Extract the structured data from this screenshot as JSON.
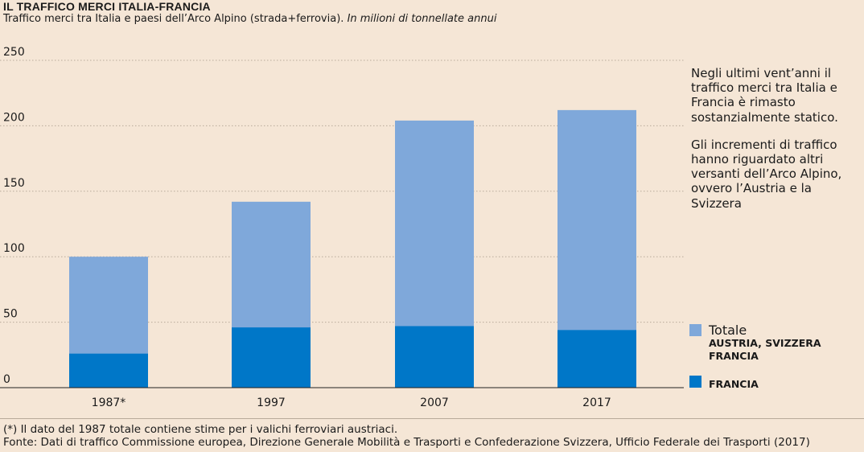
{
  "header": {
    "title": "IL TRAFFICO MERCI ITALIA-FRANCIA",
    "subtitle": "Traffico merci tra Italia e paesi dell’Arco Alpino (strada+ferrovia).",
    "subtitle_unit": "In milioni di tonnellate annui"
  },
  "annotation": {
    "paragraph1": "Negli ultimi vent’anni il traffico merci tra Italia e Francia è rimasto sostanzialmente statico.",
    "paragraph2": "Gli incrementi di traffico hanno riguardato altri versanti dell’Arco Alpino, ovvero l’Austria e la Svizzera"
  },
  "legend": {
    "totale_label": "Totale",
    "totale_sub": "AUSTRIA, SVIZZERA",
    "totale_sub2": "FRANCIA",
    "francia_label": "FRANCIA"
  },
  "footnotes": {
    "note": "(*) Il dato del 1987 totale contiene stime per i valichi ferroviari austriaci.",
    "source": "Fonte: Dati di traffico Commissione europea, Direzione Generale Mobilità e Trasporti e Confederazione Svizzera, Ufficio Federale dei Trasporti (2017)"
  },
  "colors": {
    "background": "#f5e6d6",
    "totale": "#7fa8da",
    "francia": "#0077c8",
    "grid": "#b8aa9a",
    "axis": "#222222"
  },
  "chart_data": {
    "type": "bar",
    "stacked": true,
    "categories": [
      "1987*",
      "1997",
      "2007",
      "2017"
    ],
    "series": [
      {
        "name": "FRANCIA",
        "values": [
          26,
          46,
          47,
          44
        ]
      },
      {
        "name": "Totale AUSTRIA, SVIZZERA FRANCIA",
        "values": [
          100,
          142,
          204,
          212
        ]
      }
    ],
    "yticks": [
      0,
      50,
      100,
      150,
      200,
      250
    ],
    "ylim": [
      0,
      250
    ],
    "grid": "horizontal dotted",
    "legend_position": "bottom-right"
  }
}
